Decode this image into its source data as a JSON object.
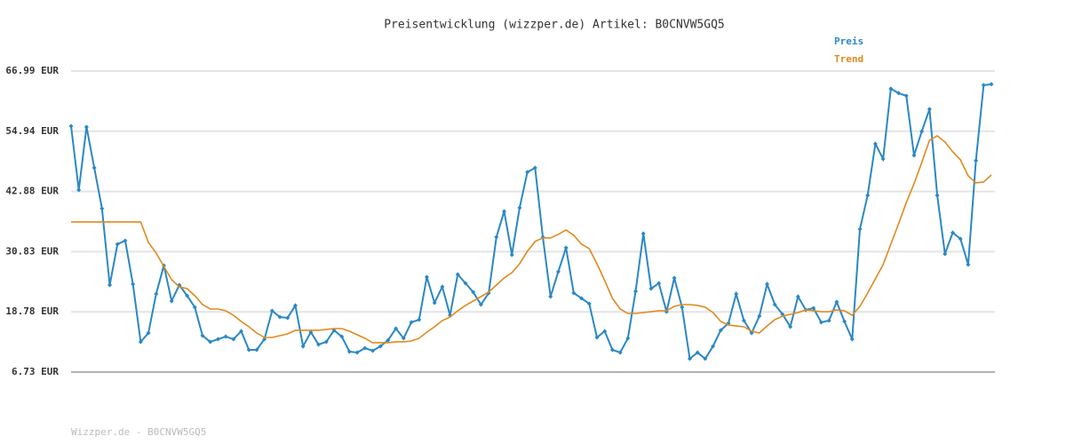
{
  "chart_data": {
    "type": "line",
    "title": "Preisentwicklung (wizzper.de) Artikel: B0CNVW5GQ5",
    "series": [
      {
        "name": "Preis",
        "color": "#2a88c4",
        "markers": true,
        "values": [
          55.98,
          43.18,
          55.8,
          47.62,
          39.45,
          24.15,
          32.33,
          33.04,
          24.33,
          12.78,
          14.55,
          22.38,
          28.07,
          20.95,
          24.15,
          22.02,
          19.71,
          14.02,
          12.78,
          13.31,
          13.84,
          13.31,
          14.91,
          11.18,
          11.18,
          13.31,
          19.0,
          17.75,
          17.58,
          20.07,
          11.89,
          14.73,
          12.24,
          12.78,
          15.09,
          13.84,
          10.82,
          10.64,
          11.53,
          11.0,
          11.89,
          13.13,
          15.44,
          13.49,
          16.69,
          17.22,
          25.75,
          20.6,
          23.8,
          18.11,
          26.29,
          24.51,
          22.73,
          20.24,
          22.55,
          33.76,
          38.91,
          30.2,
          39.62,
          46.74,
          47.62,
          33.76,
          21.84,
          26.82,
          31.62,
          22.55,
          21.49,
          20.42,
          13.66,
          14.91,
          11.18,
          10.64,
          13.49,
          22.91,
          34.47,
          23.44,
          24.51,
          18.82,
          25.58,
          19.71,
          9.4,
          10.64,
          9.4,
          11.89,
          15.09,
          16.51,
          22.38,
          17.04,
          14.55,
          17.93,
          24.33,
          20.24,
          18.29,
          15.8,
          21.84,
          19.18,
          19.53,
          16.69,
          17.04,
          20.78,
          16.86,
          13.31,
          35.36,
          42.11,
          52.42,
          49.4,
          63.45,
          62.56,
          62.03,
          50.11,
          54.91,
          59.36,
          42.11,
          30.38,
          34.64,
          33.4,
          28.24,
          49.05,
          64.16,
          64.34
        ]
      },
      {
        "name": "Trend",
        "color": "#e08a1e",
        "markers": false,
        "values": [
          36.78,
          36.78,
          36.78,
          36.78,
          36.78,
          36.78,
          36.78,
          36.78,
          36.78,
          36.78,
          32.69,
          30.56,
          27.89,
          25.22,
          23.8,
          23.44,
          22.02,
          20.24,
          19.35,
          19.35,
          19.0,
          18.11,
          16.86,
          15.8,
          14.55,
          13.66,
          13.66,
          14.02,
          14.37,
          15.09,
          15.09,
          15.09,
          15.09,
          15.26,
          15.44,
          15.44,
          14.91,
          14.2,
          13.49,
          12.6,
          12.6,
          12.6,
          12.78,
          12.78,
          12.95,
          13.49,
          14.73,
          15.8,
          17.04,
          17.75,
          19.0,
          20.07,
          20.95,
          21.84,
          22.73,
          24.15,
          25.58,
          26.64,
          28.42,
          30.91,
          32.87,
          33.58,
          33.58,
          34.29,
          35.18,
          34.11,
          32.33,
          31.44,
          28.42,
          25.04,
          21.49,
          19.35,
          18.46,
          18.46,
          18.64,
          18.82,
          19.0,
          19.0,
          19.89,
          20.24,
          20.24,
          20.07,
          19.71,
          18.64,
          16.86,
          16.15,
          15.97,
          15.8,
          14.91,
          14.55,
          15.97,
          17.22,
          17.93,
          18.29,
          18.64,
          19.18,
          19.0,
          18.82,
          18.82,
          19.18,
          19.0,
          18.11,
          19.89,
          22.55,
          25.4,
          28.24,
          32.33,
          36.42,
          40.69,
          44.42,
          48.69,
          53.14,
          54.03,
          52.78,
          50.82,
          49.22,
          46.02,
          44.6,
          44.78,
          46.2
        ]
      }
    ],
    "ylim": [
      6.73,
      66.99
    ],
    "yticks": [
      {
        "value": 6.73,
        "label": "6.73 EUR"
      },
      {
        "value": 18.78,
        "label": "18.78 EUR"
      },
      {
        "value": 30.83,
        "label": "30.83 EUR"
      },
      {
        "value": 42.88,
        "label": "42.88 EUR"
      },
      {
        "value": 54.94,
        "label": "54.94 EUR"
      },
      {
        "value": 66.99,
        "label": "66.99 EUR"
      }
    ],
    "grid": true,
    "legend": "top-right"
  },
  "footer": "Wizzper.de - B0CNVW5GQ5"
}
